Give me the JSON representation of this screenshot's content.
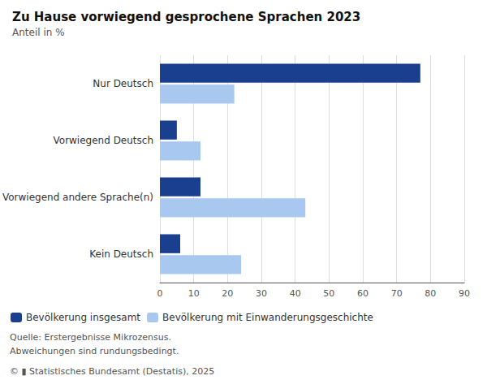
{
  "chart_data": {
    "type": "bar",
    "orientation": "horizontal",
    "title": "Zu Hause vorwiegend gesprochene Sprachen 2023",
    "subtitle": "Anteil in %",
    "categories": [
      "Nur Deutsch",
      "Vorwiegend Deutsch",
      "Vorwiegend andere Sprache(n)",
      "Kein Deutsch"
    ],
    "series": [
      {
        "name": "Bevölkerung insgesamt",
        "color": "#1a3f8f",
        "values": [
          77,
          5,
          12,
          6
        ]
      },
      {
        "name": "Bevölkerung mit Einwanderungsgeschichte",
        "color": "#a8c8f0",
        "values": [
          22,
          12,
          43,
          24
        ]
      }
    ],
    "xlim": [
      0,
      90
    ],
    "xticks": [
      0,
      10,
      20,
      30,
      40,
      50,
      60,
      70,
      80,
      90
    ],
    "grid": true,
    "legend": "bottom",
    "annotations": [
      "Quelle: Erstergebnisse Mikrozensus.",
      "Abweichungen sind rundungsbedingt.",
      "© ▮ Statistisches Bundesamt (Destatis), 2025"
    ]
  }
}
